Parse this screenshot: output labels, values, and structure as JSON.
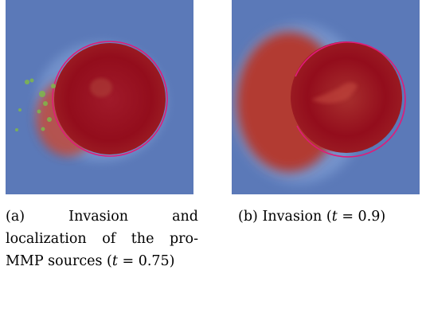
{
  "figure": {
    "colors": {
      "background": "#5b79b8",
      "tumor_core": "#930d1c",
      "tumor_edge": "#c2473c",
      "boundary": "#e01b78",
      "sources": "#7fb84a"
    },
    "subfigures": [
      {
        "label": "(a)",
        "caption_text": "Invasion and localization of the pro-MMP sources (",
        "caption_var": "t",
        "caption_value": " = 0.75)"
      },
      {
        "label": "(b)",
        "caption_text": "Invasion (",
        "caption_var": "t",
        "caption_value": " = 0.9)"
      }
    ]
  }
}
